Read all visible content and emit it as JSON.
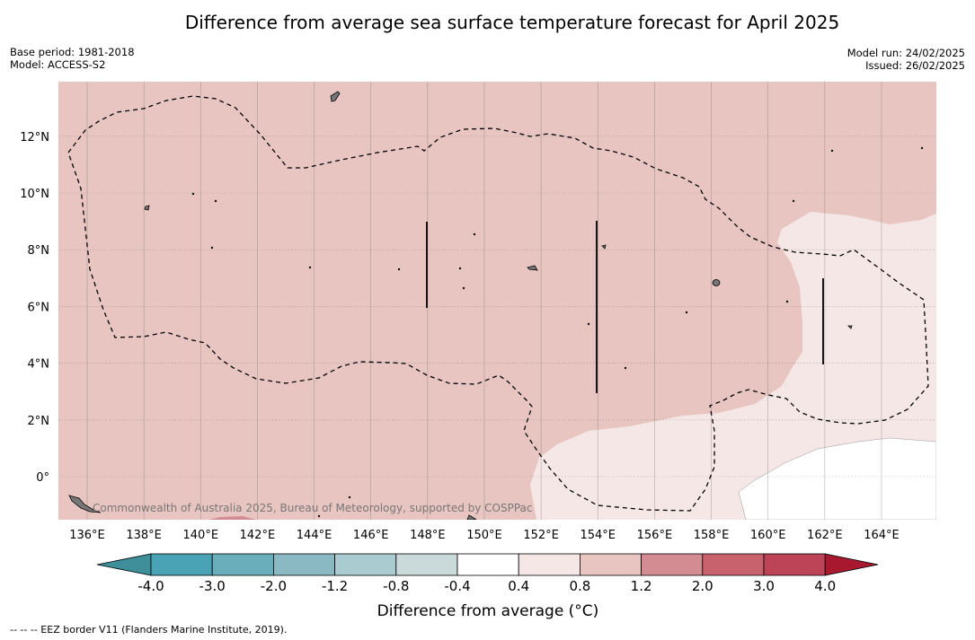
{
  "title": "Difference from average sea surface temperature forecast for April 2025",
  "meta_left": {
    "base_period": "Base period: 1981-2018",
    "model": "Model: ACCESS-S2"
  },
  "meta_right": {
    "model_run": "Model run: 24/02/2025",
    "issued": "Issued: 26/02/2025"
  },
  "map": {
    "copyright": "Commonwealth of Australia 2025, Bureau of Meteorology, supported by COSPPac",
    "lon_labels": [
      "136°E",
      "138°E",
      "140°E",
      "142°E",
      "144°E",
      "146°E",
      "148°E",
      "150°E",
      "152°E",
      "154°E",
      "156°E",
      "158°E",
      "160°E",
      "162°E",
      "164°E"
    ],
    "lat_labels": [
      "12°N",
      "10°N",
      "8°N",
      "6°N",
      "4°N",
      "2°N",
      "0°"
    ],
    "lon_values": [
      136,
      138,
      140,
      142,
      144,
      146,
      148,
      150,
      152,
      154,
      156,
      158,
      160,
      162,
      164
    ],
    "lat_values": [
      12,
      10,
      8,
      6,
      4,
      2,
      0
    ]
  },
  "colorbar": {
    "label": "Difference from average (°C)",
    "ticks": [
      "-4.0",
      "-3.0",
      "-2.0",
      "-1.2",
      "-0.8",
      "-0.4",
      "0.4",
      "0.8",
      "1.2",
      "2.0",
      "3.0",
      "4.0"
    ],
    "colors": [
      "#3e8f9a",
      "#4aa3b4",
      "#6aaebb",
      "#8ab9c3",
      "#aacbd0",
      "#cad9da",
      "#ffffff",
      "#f5e7e5",
      "#e8c5c0",
      "#d48c93",
      "#c8636d",
      "#bc4456",
      "#a8192f"
    ]
  },
  "colors": {
    "anomaly_0_4_0_8": "#f5e7e5",
    "anomaly_0_8_1_2": "#e8c5c0",
    "land": "#777777"
  },
  "footer": "--  --  -- EEZ border V11 (Flanders Marine Institute, 2019)."
}
